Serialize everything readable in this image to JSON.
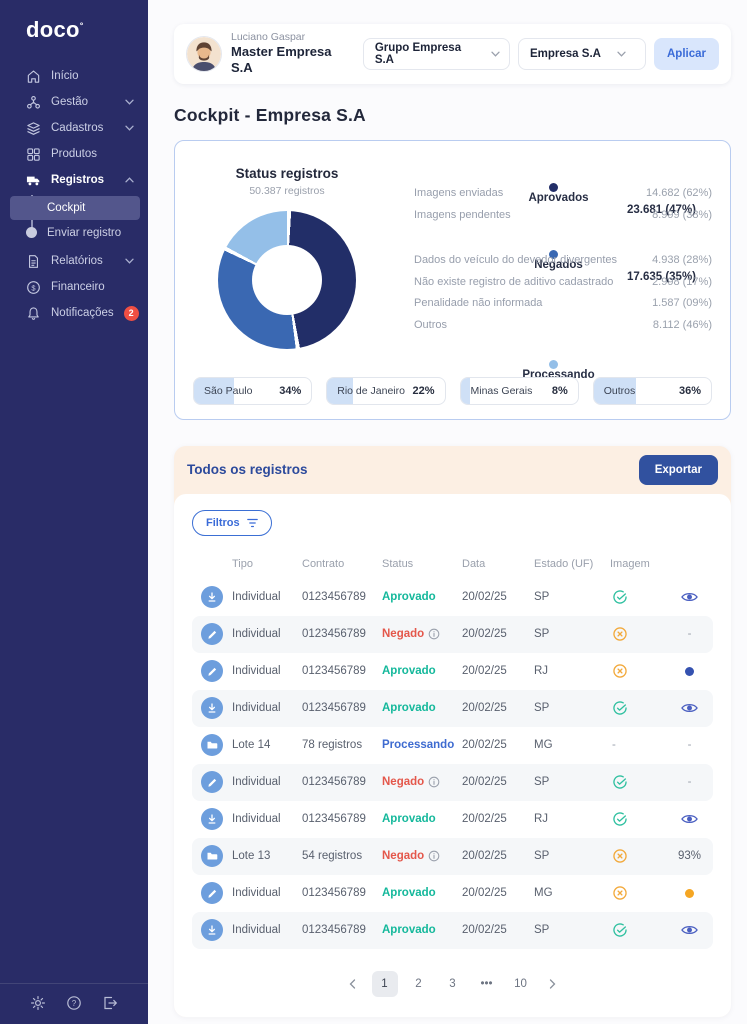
{
  "brand": {
    "logo_text": "doco"
  },
  "sidebar": {
    "items": [
      {
        "label": "Início",
        "icon": "home-icon"
      },
      {
        "label": "Gestão",
        "icon": "org-chart-icon",
        "chevron": "down"
      },
      {
        "label": "Cadastros",
        "icon": "layers-icon",
        "chevron": "down"
      },
      {
        "label": "Produtos",
        "icon": "grid-icon"
      },
      {
        "label": "Registros",
        "icon": "truck-icon",
        "chevron": "up",
        "active": true,
        "submenu": [
          {
            "label": "Cockpit",
            "active": true
          },
          {
            "label": "Enviar registro",
            "active": false
          }
        ]
      },
      {
        "label": "Relatórios",
        "icon": "document-icon",
        "chevron": "down"
      },
      {
        "label": "Financeiro",
        "icon": "dollar-icon"
      },
      {
        "label": "Notificações",
        "icon": "bell-icon",
        "badge": "2"
      }
    ],
    "footer_icons": [
      "settings-icon",
      "help-icon",
      "logout-icon"
    ]
  },
  "header": {
    "user_name": "Luciano Gaspar",
    "user_role": "Master Empresa S.A",
    "group_select": "Grupo Empresa S.A",
    "company_select": "Empresa S.A",
    "apply_label": "Aplicar"
  },
  "page": {
    "title": "Cockpit - Empresa S.A"
  },
  "chart_data": {
    "type": "pie",
    "variant": "donut",
    "title": "Status registros",
    "subtitle": "50.387 registros",
    "total": 50387,
    "legend_position": "right",
    "segments": [
      {
        "label": "Aprovados",
        "value": 23681,
        "value_display": "23.681",
        "pct": 47,
        "pct_display": "47%",
        "color": "#222e68",
        "children": [
          {
            "label": "Imagens enviadas",
            "value_display": "14.682",
            "pct_display": "62%"
          },
          {
            "label": "Imagens pendentes",
            "value_display": "8.999",
            "pct_display": "38%"
          }
        ]
      },
      {
        "label": "Negados",
        "value": 17635,
        "value_display": "17.635",
        "pct": 35,
        "pct_display": "35%",
        "color": "#3a68b2",
        "children": [
          {
            "label": "Dados do veículo do devedor divergentes",
            "value_display": "4.938",
            "pct_display": "28%"
          },
          {
            "label": "Não existe registro de aditivo cadastrado",
            "value_display": "2.998",
            "pct_display": "17%"
          },
          {
            "label": "Penalidade não informada",
            "value_display": "1.587",
            "pct_display": "09%"
          },
          {
            "label": "Outros",
            "value_display": "8.112",
            "pct_display": "46%"
          }
        ]
      },
      {
        "label": "Processando",
        "value": 9071,
        "value_display": "9.071",
        "pct": 18,
        "pct_display": "18%",
        "color": "#94bfe8"
      }
    ],
    "states": [
      {
        "label": "São Paulo",
        "pct": 34,
        "pct_display": "34%"
      },
      {
        "label": "Rio de Janeiro",
        "pct": 22,
        "pct_display": "22%"
      },
      {
        "label": "Minas Gerais",
        "pct": 8,
        "pct_display": "8%"
      },
      {
        "label": "Outros",
        "pct": 36,
        "pct_display": "36%"
      }
    ]
  },
  "records": {
    "title": "Todos os registros",
    "export_label": "Exportar",
    "filters_label": "Filtros",
    "columns": [
      "Tipo",
      "Contrato",
      "Status",
      "Data",
      "Estado (UF)",
      "Imagem"
    ],
    "rows": [
      {
        "row_icon": "download-circle-icon",
        "tipo": "Individual",
        "contrato": "0123456789",
        "status": "Aprovado",
        "status_kind": "approved",
        "has_info": false,
        "data": "20/02/25",
        "estado": "SP",
        "imagem": "approved",
        "action": {
          "type": "view"
        }
      },
      {
        "row_icon": "edit-circle-icon",
        "tipo": "Individual",
        "contrato": "0123456789",
        "status": "Negado",
        "status_kind": "rejected",
        "has_info": true,
        "data": "20/02/25",
        "estado": "SP",
        "imagem": "rejected",
        "action": {
          "type": "dash"
        }
      },
      {
        "row_icon": "edit-circle-icon",
        "tipo": "Individual",
        "contrato": "0123456789",
        "status": "Aprovado",
        "status_kind": "approved",
        "has_info": false,
        "data": "20/02/25",
        "estado": "RJ",
        "imagem": "rejected",
        "action": {
          "type": "dot",
          "color": "#3552b0"
        }
      },
      {
        "row_icon": "download-circle-icon",
        "tipo": "Individual",
        "contrato": "0123456789",
        "status": "Aprovado",
        "status_kind": "approved",
        "has_info": false,
        "data": "20/02/25",
        "estado": "SP",
        "imagem": "approved",
        "action": {
          "type": "view"
        }
      },
      {
        "row_icon": "batch-circle-icon",
        "tipo": "Lote 14",
        "contrato": "78 registros",
        "status": "Processando",
        "status_kind": "processing",
        "has_info": false,
        "data": "20/02/25",
        "estado": "MG",
        "imagem": "none",
        "action": {
          "type": "dash"
        }
      },
      {
        "row_icon": "edit-circle-icon",
        "tipo": "Individual",
        "contrato": "0123456789",
        "status": "Negado",
        "status_kind": "rejected",
        "has_info": true,
        "data": "20/02/25",
        "estado": "SP",
        "imagem": "approved",
        "action": {
          "type": "dash"
        }
      },
      {
        "row_icon": "download-circle-icon",
        "tipo": "Individual",
        "contrato": "0123456789",
        "status": "Aprovado",
        "status_kind": "approved",
        "has_info": false,
        "data": "20/02/25",
        "estado": "RJ",
        "imagem": "approved",
        "action": {
          "type": "view"
        }
      },
      {
        "row_icon": "batch-circle-icon",
        "tipo": "Lote 13",
        "contrato": "54 registros",
        "status": "Negado",
        "status_kind": "rejected",
        "has_info": true,
        "data": "20/02/25",
        "estado": "SP",
        "imagem": "rejected",
        "action": {
          "type": "text",
          "value": "93%"
        }
      },
      {
        "row_icon": "edit-circle-icon",
        "tipo": "Individual",
        "contrato": "0123456789",
        "status": "Aprovado",
        "status_kind": "approved",
        "has_info": false,
        "data": "20/02/25",
        "estado": "MG",
        "imagem": "rejected",
        "action": {
          "type": "dot",
          "color": "#f5a623"
        }
      },
      {
        "row_icon": "download-circle-icon",
        "tipo": "Individual",
        "contrato": "0123456789",
        "status": "Aprovado",
        "status_kind": "approved",
        "has_info": false,
        "data": "20/02/25",
        "estado": "SP",
        "imagem": "approved",
        "action": {
          "type": "view"
        }
      }
    ],
    "pagination": {
      "pages": [
        "1",
        "2",
        "3",
        "•••",
        "10"
      ],
      "active": "1"
    }
  },
  "colors": {
    "sidebar_bg": "#292c67",
    "accent_blue": "#3a6bd8",
    "export_blue": "#31519f",
    "approved": "#14b89b",
    "rejected": "#e4574b",
    "processing": "#3e6bd0",
    "image_approved": "#2fc0a0",
    "image_rejected": "#f2a93b",
    "badge_red": "#f04f43",
    "chip_fill": "#cfe0f6",
    "records_header_bg": "#fcefe3"
  }
}
